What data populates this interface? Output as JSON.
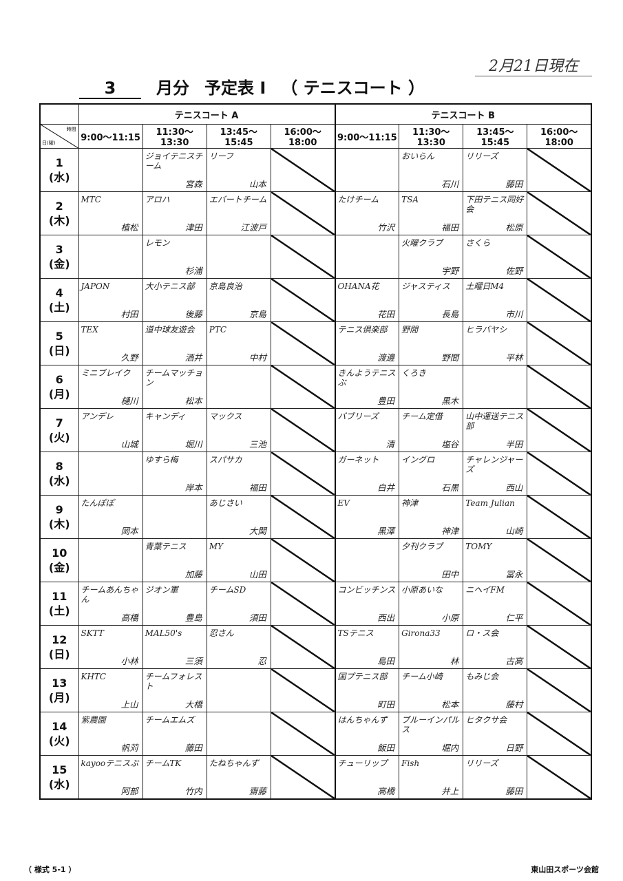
{
  "as_of": "2月21日現在",
  "title": {
    "month": "3",
    "month_label": "月分",
    "doc": "予定表 Ⅰ",
    "facility": "（ テニスコート ）"
  },
  "courts": [
    "テニスコート A",
    "テニスコート B"
  ],
  "corner": {
    "time": "時間",
    "day": "日(曜)"
  },
  "times": [
    "9:00～11:15",
    "11:30～13:30",
    "13:45～15:45",
    "16:00～18:00"
  ],
  "closed_slot": "16:00～18:00",
  "rows": [
    {
      "day": "1",
      "wd": "(水)",
      "a": [
        null,
        {
          "team": "ジョイテニスチーム",
          "rep": "宮森"
        },
        {
          "team": "リーフ",
          "rep": "山本"
        }
      ],
      "b": [
        null,
        {
          "team": "おいらん",
          "rep": "石川"
        },
        {
          "team": "リリーズ",
          "rep": "藤田"
        }
      ]
    },
    {
      "day": "2",
      "wd": "(木)",
      "a": [
        {
          "team": "MTC",
          "rep": "植松"
        },
        {
          "team": "アロハ",
          "rep": "津田"
        },
        {
          "team": "エバートチーム",
          "rep": "江波戸"
        }
      ],
      "b": [
        {
          "team": "たけチーム",
          "rep": "竹沢"
        },
        {
          "team": "TSA",
          "rep": "福田"
        },
        {
          "team": "下田テニス同好会",
          "rep": "松原"
        }
      ]
    },
    {
      "day": "3",
      "wd": "(金)",
      "a": [
        null,
        {
          "team": "レモン",
          "rep": "杉浦"
        },
        null
      ],
      "b": [
        null,
        {
          "team": "火曜クラブ",
          "rep": "宇野"
        },
        {
          "team": "さくら",
          "rep": "佐野"
        }
      ]
    },
    {
      "day": "4",
      "wd": "(土)",
      "a": [
        {
          "team": "JAPON",
          "rep": "村田"
        },
        {
          "team": "大小テニス部",
          "rep": "後藤"
        },
        {
          "team": "京島良治",
          "rep": "京島"
        }
      ],
      "b": [
        {
          "team": "OHANA花",
          "rep": "花田"
        },
        {
          "team": "ジャスティス",
          "rep": "長島"
        },
        {
          "team": "土曜日M4",
          "rep": "市川"
        }
      ]
    },
    {
      "day": "5",
      "wd": "(日)",
      "a": [
        {
          "team": "TEX",
          "rep": "久野"
        },
        {
          "team": "道中球友遊会",
          "rep": "酒井"
        },
        {
          "team": "PTC",
          "rep": "中村"
        }
      ],
      "b": [
        {
          "team": "テニス倶楽部",
          "rep": "渡邊"
        },
        {
          "team": "野間",
          "rep": "野間"
        },
        {
          "team": "ヒラバヤシ",
          "rep": "平林"
        }
      ]
    },
    {
      "day": "6",
      "wd": "(月)",
      "a": [
        {
          "team": "ミニブレイク",
          "rep": "樋川"
        },
        {
          "team": "チームマッチョン",
          "rep": "松本"
        },
        null
      ],
      "b": [
        {
          "team": "きんようテニスぶ",
          "rep": "豊田"
        },
        {
          "team": "くろき",
          "rep": "黒木"
        },
        null
      ]
    },
    {
      "day": "7",
      "wd": "(火)",
      "a": [
        {
          "team": "アンデレ",
          "rep": "山城"
        },
        {
          "team": "キャンディ",
          "rep": "堀川"
        },
        {
          "team": "マックス",
          "rep": "三池"
        }
      ],
      "b": [
        {
          "team": "バブリーズ",
          "rep": "清"
        },
        {
          "team": "チーム定借",
          "rep": "塩谷"
        },
        {
          "team": "山中運送テニス部",
          "rep": "半田"
        }
      ]
    },
    {
      "day": "8",
      "wd": "(水)",
      "a": [
        null,
        {
          "team": "ゆすら梅",
          "rep": "岸本"
        },
        {
          "team": "スパサカ",
          "rep": "福田"
        }
      ],
      "b": [
        {
          "team": "ガーネット",
          "rep": "白井"
        },
        {
          "team": "イングロ",
          "rep": "石黒"
        },
        {
          "team": "チャレンジャーズ",
          "rep": "西山"
        }
      ]
    },
    {
      "day": "9",
      "wd": "(木)",
      "a": [
        {
          "team": "たんぽぽ",
          "rep": "岡本"
        },
        null,
        {
          "team": "あじさい",
          "rep": "大関"
        }
      ],
      "b": [
        {
          "team": "EV",
          "rep": "黒澤"
        },
        {
          "team": "神津",
          "rep": "神津"
        },
        {
          "team": "Team Julian",
          "rep": "山崎"
        }
      ]
    },
    {
      "day": "10",
      "wd": "(金)",
      "a": [
        null,
        {
          "team": "青葉テニス",
          "rep": "加藤"
        },
        {
          "team": "MY",
          "rep": "山田"
        }
      ],
      "b": [
        null,
        {
          "team": "夕刊クラブ",
          "rep": "田中"
        },
        {
          "team": "TOMY",
          "rep": "冨永"
        }
      ]
    },
    {
      "day": "11",
      "wd": "(土)",
      "a": [
        {
          "team": "チームあんちゃん",
          "rep": "高橋"
        },
        {
          "team": "ジオン軍",
          "rep": "豊島"
        },
        {
          "team": "チームSD",
          "rep": "須田"
        }
      ],
      "b": [
        {
          "team": "コンビッチンス",
          "rep": "西出"
        },
        {
          "team": "小原あいな",
          "rep": "小原"
        },
        {
          "team": "ニヘイFM",
          "rep": "仁平"
        }
      ]
    },
    {
      "day": "12",
      "wd": "(日)",
      "a": [
        {
          "team": "SKTT",
          "rep": "小林"
        },
        {
          "team": "MAL50's",
          "rep": "三須"
        },
        {
          "team": "忍さん",
          "rep": "忍"
        }
      ],
      "b": [
        {
          "team": "TSテニス",
          "rep": "島田"
        },
        {
          "team": "Girona33",
          "rep": "林"
        },
        {
          "team": "ロ・ス会",
          "rep": "古高"
        }
      ]
    },
    {
      "day": "13",
      "wd": "(月)",
      "a": [
        {
          "team": "KHTC",
          "rep": "上山"
        },
        {
          "team": "チームフォレスト",
          "rep": "大橋"
        },
        null
      ],
      "b": [
        {
          "team": "国プテニス部",
          "rep": "町田"
        },
        {
          "team": "チーム小崎",
          "rep": "松本"
        },
        {
          "team": "もみじ会",
          "rep": "藤村"
        }
      ]
    },
    {
      "day": "14",
      "wd": "(火)",
      "a": [
        {
          "team": "紫農園",
          "rep": "帆苅"
        },
        {
          "team": "チームエムズ",
          "rep": "藤田"
        },
        null
      ],
      "b": [
        {
          "team": "はんちゃんず",
          "rep": "飯田"
        },
        {
          "team": "ブルーインパルス",
          "rep": "堀内"
        },
        {
          "team": "ヒタクサ会",
          "rep": "日野"
        }
      ]
    },
    {
      "day": "15",
      "wd": "(水)",
      "a": [
        {
          "team": "kayooテニスぶ",
          "rep": "阿部"
        },
        {
          "team": "チームTK",
          "rep": "竹内"
        },
        {
          "team": "たねちゃんず",
          "rep": "齋藤"
        }
      ],
      "b": [
        {
          "team": "チューリップ",
          "rep": "高橋"
        },
        {
          "team": "Fish",
          "rep": "井上"
        },
        {
          "team": "リリーズ",
          "rep": "藤田"
        }
      ]
    }
  ],
  "footer": {
    "form_no": "（ 様式 5-1 ）",
    "facility": "東山田スポーツ会館"
  }
}
